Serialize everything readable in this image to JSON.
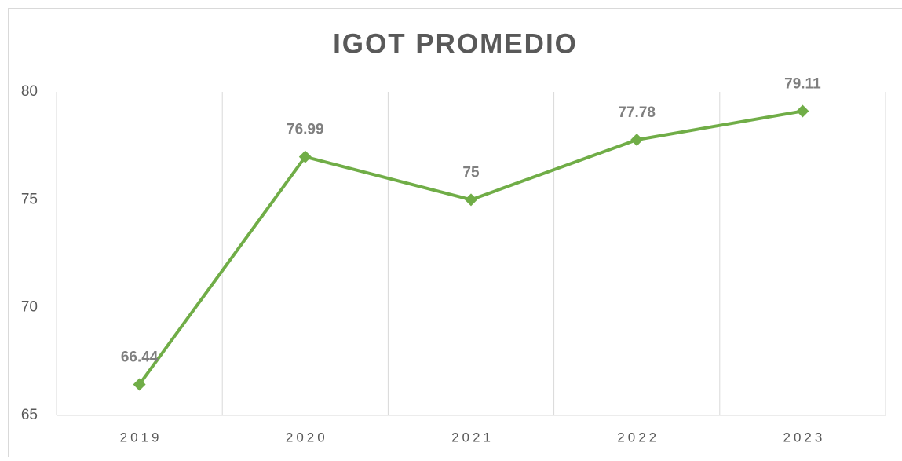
{
  "chart_data": {
    "type": "line",
    "title": "IGOT PROMEDIO",
    "categories": [
      "2019",
      "2020",
      "2021",
      "2022",
      "2023"
    ],
    "values": [
      66.44,
      76.99,
      75,
      77.78,
      79.11
    ],
    "color": "#70ad47",
    "ylim": [
      65,
      80
    ],
    "yticks": [
      65,
      70,
      75,
      80
    ],
    "grid": "x"
  }
}
